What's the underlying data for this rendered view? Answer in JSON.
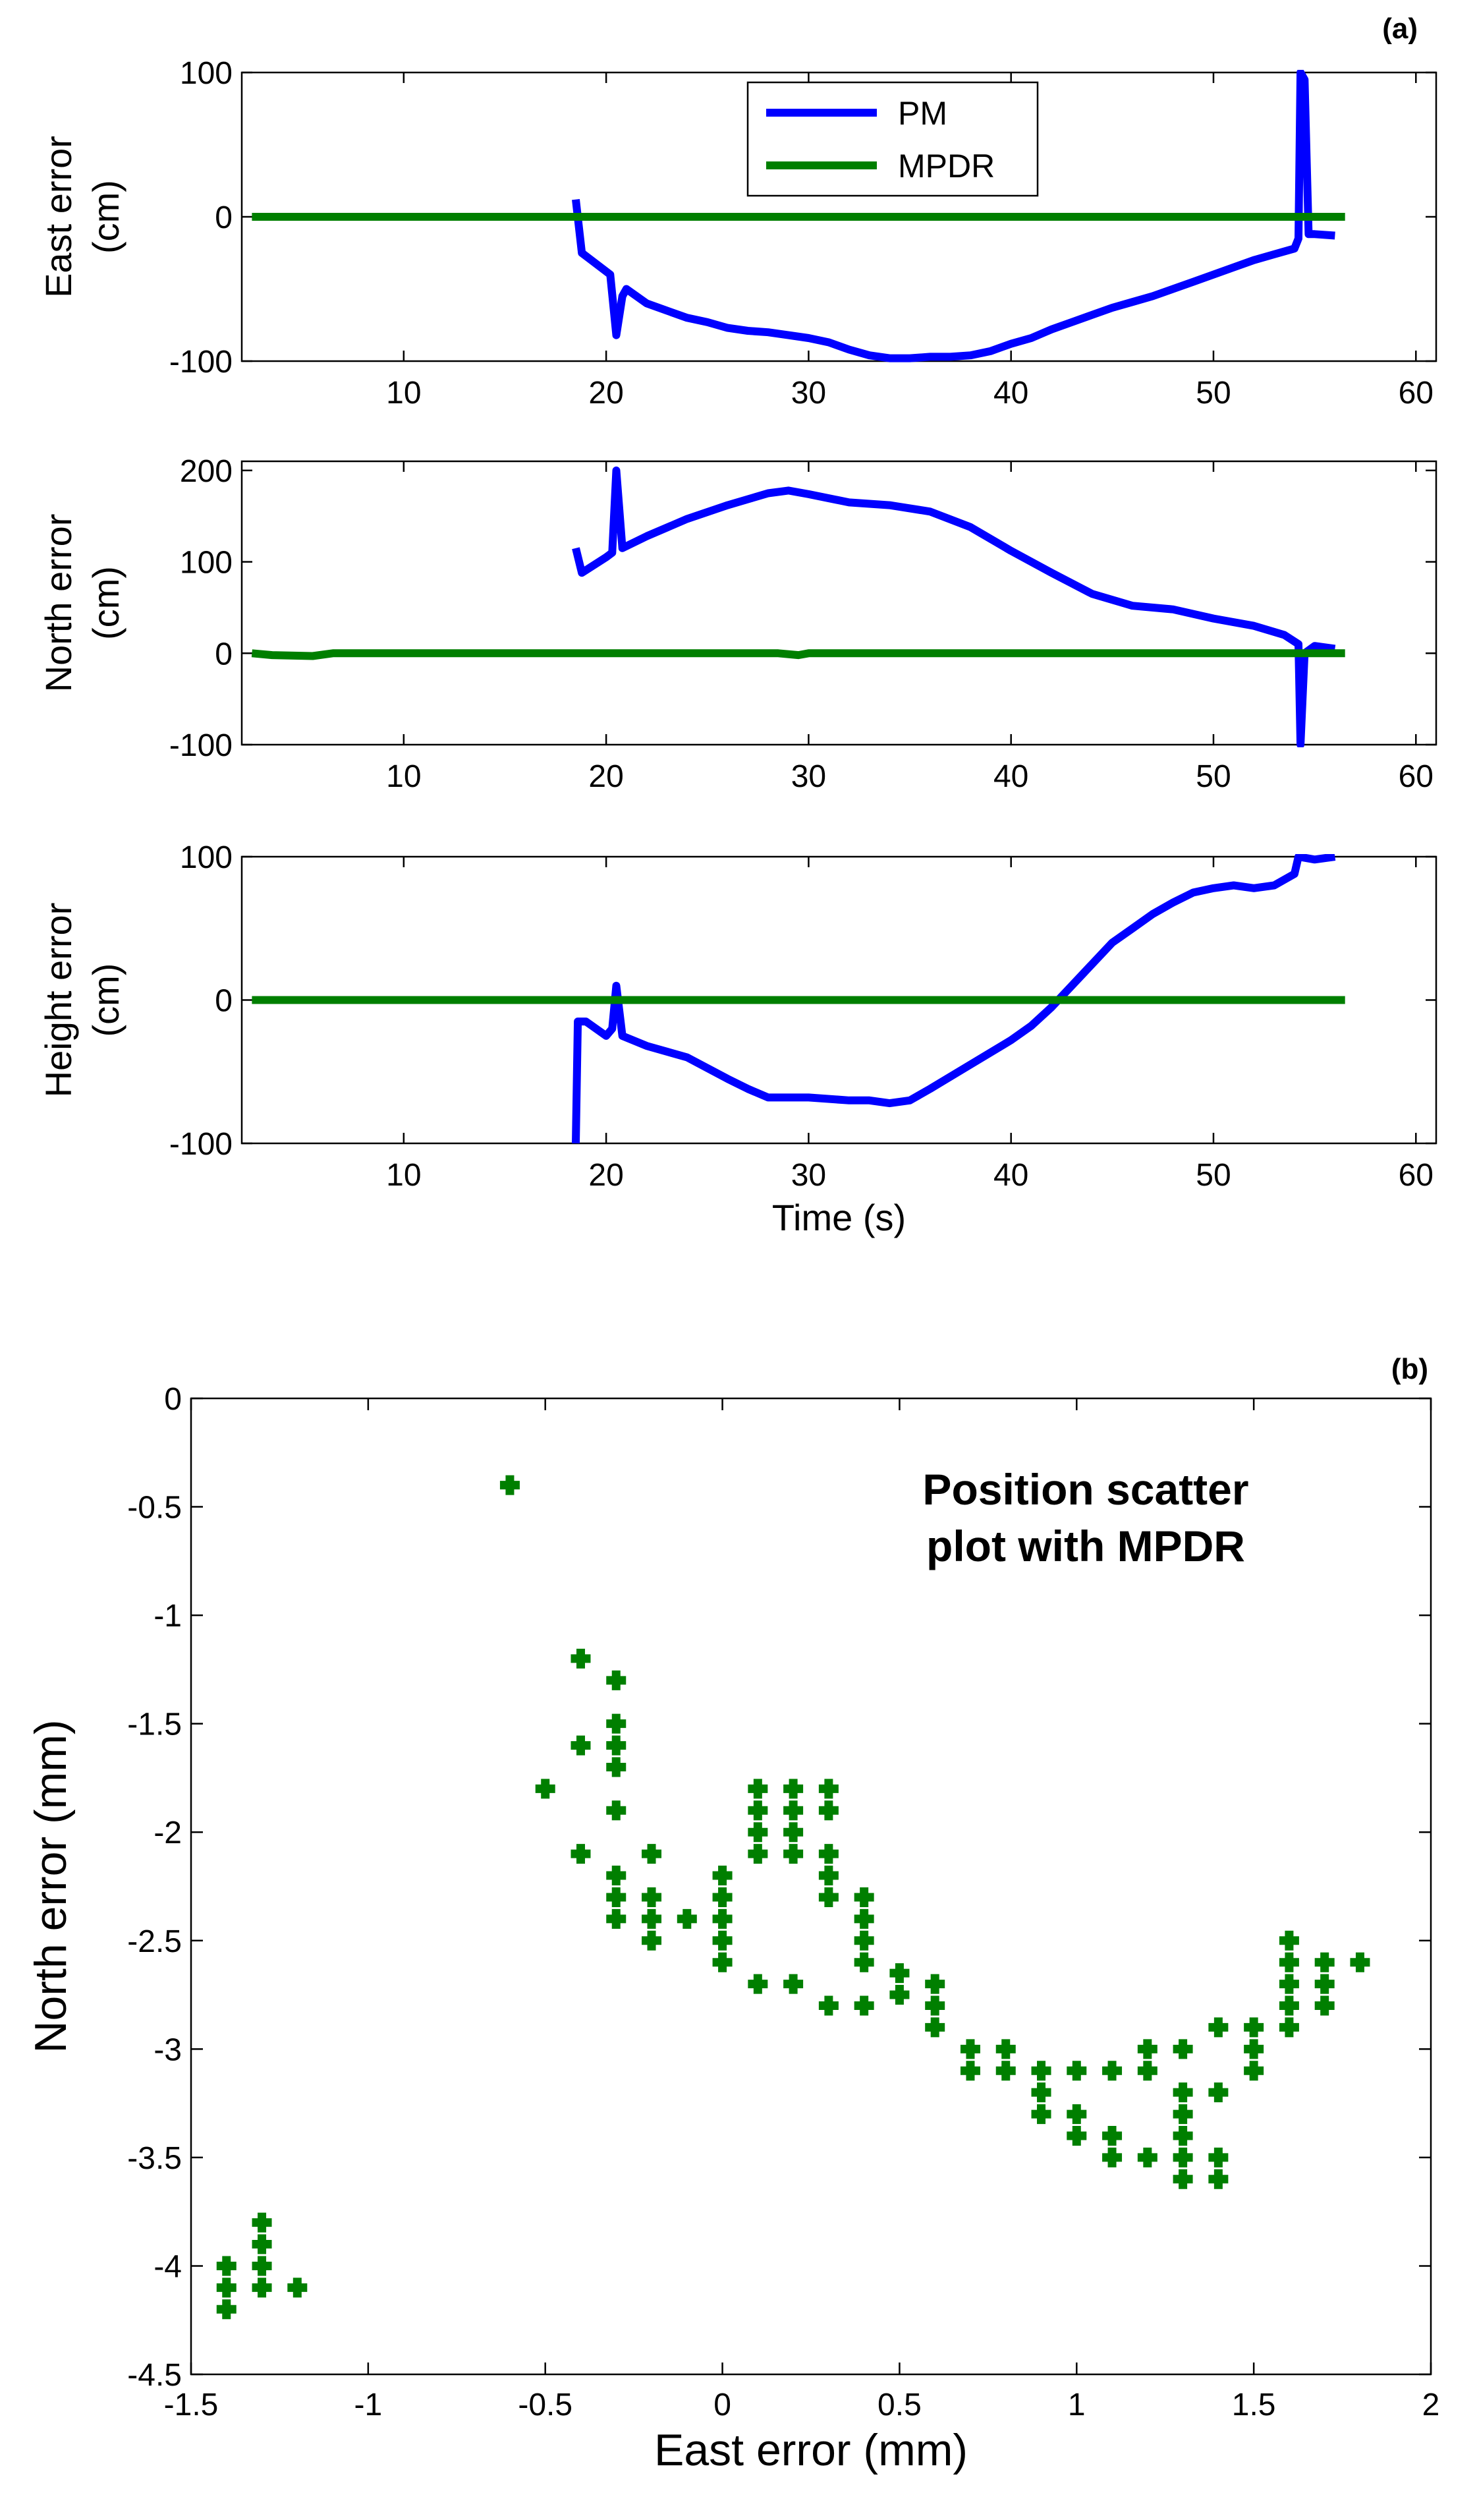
{
  "figure": {
    "panel_a_tag": "(a)",
    "panel_b_tag": "(b)",
    "colors": {
      "pm": "#0000ff",
      "mpdr": "#007f00",
      "axis": "#000000"
    }
  },
  "chart_data": [
    {
      "type": "line",
      "panel": "a-east",
      "title": "",
      "xlabel": "",
      "ylabel_lines": [
        "East error",
        "(cm)"
      ],
      "xlim": [
        2,
        61
      ],
      "ylim": [
        -100,
        100
      ],
      "xticks": [
        10,
        20,
        30,
        40,
        50,
        60
      ],
      "yticks": [
        -100,
        0,
        100
      ],
      "legend": {
        "position": "top-center",
        "entries": [
          "PM",
          "MPDR"
        ]
      },
      "series": [
        {
          "name": "PM",
          "color": "#0000ff",
          "x": [
            18.5,
            18.8,
            20.2,
            20.5,
            20.8,
            21.0,
            22.0,
            23.0,
            24.0,
            25.0,
            26.0,
            27.0,
            28.0,
            29.0,
            30.0,
            31.0,
            32.0,
            33.0,
            34.0,
            35.0,
            36.0,
            37.0,
            38.0,
            39.0,
            40.0,
            41.0,
            42.0,
            43.0,
            44.0,
            45.0,
            46.0,
            47.0,
            48.0,
            49.0,
            50.0,
            51.0,
            52.0,
            53.0,
            54.0,
            54.2,
            54.3,
            54.5,
            54.7,
            55.0,
            56.0
          ],
          "y": [
            12,
            -25,
            -40,
            -82,
            -55,
            -50,
            -60,
            -65,
            -70,
            -73,
            -77,
            -79,
            -80,
            -82,
            -84,
            -87,
            -92,
            -96,
            -98,
            -98,
            -97,
            -97,
            -96,
            -93,
            -88,
            -84,
            -78,
            -73,
            -68,
            -63,
            -59,
            -55,
            -50,
            -45,
            -40,
            -35,
            -30,
            -26,
            -22,
            -15,
            100,
            95,
            -12,
            -12,
            -13
          ]
        },
        {
          "name": "MPDR",
          "color": "#007f00",
          "x": [
            2.5,
            56.5
          ],
          "y": [
            0,
            0
          ]
        }
      ]
    },
    {
      "type": "line",
      "panel": "a-north",
      "title": "",
      "xlabel": "",
      "ylabel_lines": [
        "North error",
        "(cm)"
      ],
      "xlim": [
        2,
        61
      ],
      "ylim": [
        -100,
        210
      ],
      "xticks": [
        10,
        20,
        30,
        40,
        50,
        60
      ],
      "yticks": [
        -100,
        0,
        100,
        200
      ],
      "series": [
        {
          "name": "PM",
          "color": "#0000ff",
          "x": [
            18.5,
            18.8,
            20.0,
            20.3,
            20.5,
            20.8,
            22.0,
            24.0,
            26.0,
            28.0,
            29.0,
            30.0,
            32.0,
            34.0,
            36.0,
            38.0,
            40.0,
            42.0,
            44.0,
            46.0,
            48.0,
            50.0,
            52.0,
            53.5,
            54.2,
            54.3,
            54.5,
            55.0,
            56.0
          ],
          "y": [
            115,
            88,
            105,
            110,
            200,
            115,
            128,
            147,
            162,
            175,
            178,
            174,
            165,
            162,
            155,
            138,
            112,
            88,
            65,
            52,
            48,
            38,
            30,
            20,
            10,
            -100,
            0,
            8,
            5
          ]
        },
        {
          "name": "MPDR",
          "color": "#007f00",
          "x": [
            2.5,
            3.5,
            5.5,
            6.5,
            28.5,
            29.5,
            30.0,
            56.5
          ],
          "y": [
            0,
            -2,
            -3,
            0,
            0,
            -2,
            0,
            0
          ]
        }
      ]
    },
    {
      "type": "line",
      "panel": "a-height",
      "title": "",
      "xlabel": "Time (s)",
      "ylabel_lines": [
        "Height error",
        "(cm)"
      ],
      "xlim": [
        2,
        61
      ],
      "ylim": [
        -100,
        100
      ],
      "xticks": [
        10,
        20,
        30,
        40,
        50,
        60
      ],
      "yticks": [
        -100,
        0,
        100
      ],
      "series": [
        {
          "name": "PM",
          "color": "#0000ff",
          "x": [
            18.5,
            18.6,
            19.0,
            20.0,
            20.3,
            20.5,
            20.8,
            22.0,
            24.0,
            26.0,
            27.0,
            28.0,
            30.0,
            32.0,
            33.0,
            34.0,
            35.0,
            36.0,
            38.0,
            40.0,
            41.0,
            42.0,
            43.0,
            44.0,
            45.0,
            46.0,
            47.0,
            48.0,
            49.0,
            50.0,
            51.0,
            52.0,
            53.0,
            54.0,
            54.2,
            55.0,
            56.0
          ],
          "y": [
            -100,
            -15,
            -15,
            -25,
            -20,
            10,
            -25,
            -32,
            -40,
            -55,
            -62,
            -68,
            -68,
            -70,
            -70,
            -72,
            -70,
            -62,
            -45,
            -28,
            -18,
            -5,
            10,
            25,
            40,
            50,
            60,
            68,
            75,
            78,
            80,
            78,
            80,
            88,
            100,
            98,
            100
          ]
        },
        {
          "name": "MPDR",
          "color": "#007f00",
          "x": [
            2.5,
            56.5
          ],
          "y": [
            0,
            0
          ]
        }
      ]
    },
    {
      "type": "scatter",
      "panel": "b",
      "title": "",
      "annotation_lines": [
        "Position scatter",
        "plot with MPDR"
      ],
      "xlabel": "East error (mm)",
      "ylabel": "North error (mm)",
      "xlim": [
        -1.5,
        2
      ],
      "ylim": [
        -4.5,
        0
      ],
      "xticks": [
        -1.5,
        -1,
        -0.5,
        0,
        0.5,
        1,
        1.5,
        2
      ],
      "xtick_labels": [
        "-1.5",
        "-1",
        "-0.5",
        "0",
        "0.5",
        "1",
        "1.5",
        "2"
      ],
      "yticks": [
        0,
        -0.5,
        -1,
        -1.5,
        -2,
        -2.5,
        -3,
        -3.5,
        -4,
        -4.5
      ],
      "ytick_labels": [
        "0",
        "-0.5",
        "-1",
        "-1.5",
        "-2",
        "-2.5",
        "-3",
        "-3.5",
        "-4",
        "-4.5"
      ],
      "series": [
        {
          "name": "MPDR",
          "color": "#007f00",
          "marker": "plus",
          "points": [
            [
              -1.4,
              -4.0
            ],
            [
              -1.4,
              -4.1
            ],
            [
              -1.4,
              -4.2
            ],
            [
              -1.3,
              -3.8
            ],
            [
              -1.3,
              -3.9
            ],
            [
              -1.3,
              -4.0
            ],
            [
              -1.3,
              -4.1
            ],
            [
              -1.2,
              -4.1
            ],
            [
              -0.6,
              -0.4
            ],
            [
              -0.5,
              -1.8
            ],
            [
              -0.4,
              -1.2
            ],
            [
              -0.4,
              -1.6
            ],
            [
              -0.4,
              -2.1
            ],
            [
              -0.3,
              -1.3
            ],
            [
              -0.3,
              -1.5
            ],
            [
              -0.3,
              -1.6
            ],
            [
              -0.3,
              -1.7
            ],
            [
              -0.3,
              -1.9
            ],
            [
              -0.3,
              -2.2
            ],
            [
              -0.3,
              -2.3
            ],
            [
              -0.3,
              -2.4
            ],
            [
              -0.2,
              -2.1
            ],
            [
              -0.2,
              -2.3
            ],
            [
              -0.2,
              -2.4
            ],
            [
              -0.2,
              -2.5
            ],
            [
              -0.1,
              -2.4
            ],
            [
              0.0,
              -2.2
            ],
            [
              0.0,
              -2.3
            ],
            [
              0.0,
              -2.4
            ],
            [
              0.0,
              -2.5
            ],
            [
              0.0,
              -2.6
            ],
            [
              0.1,
              -1.8
            ],
            [
              0.1,
              -1.9
            ],
            [
              0.1,
              -2.0
            ],
            [
              0.1,
              -2.1
            ],
            [
              0.1,
              -2.7
            ],
            [
              0.2,
              -1.8
            ],
            [
              0.2,
              -1.9
            ],
            [
              0.2,
              -2.0
            ],
            [
              0.2,
              -2.1
            ],
            [
              0.2,
              -2.7
            ],
            [
              0.3,
              -1.8
            ],
            [
              0.3,
              -1.9
            ],
            [
              0.3,
              -2.1
            ],
            [
              0.3,
              -2.2
            ],
            [
              0.3,
              -2.3
            ],
            [
              0.3,
              -2.8
            ],
            [
              0.4,
              -2.3
            ],
            [
              0.4,
              -2.4
            ],
            [
              0.4,
              -2.5
            ],
            [
              0.4,
              -2.6
            ],
            [
              0.4,
              -2.8
            ],
            [
              0.5,
              -2.65
            ],
            [
              0.5,
              -2.75
            ],
            [
              0.6,
              -2.7
            ],
            [
              0.6,
              -2.8
            ],
            [
              0.6,
              -2.9
            ],
            [
              0.7,
              -3.0
            ],
            [
              0.7,
              -3.1
            ],
            [
              0.8,
              -3.0
            ],
            [
              0.8,
              -3.1
            ],
            [
              0.9,
              -3.1
            ],
            [
              0.9,
              -3.2
            ],
            [
              0.9,
              -3.3
            ],
            [
              1.0,
              -3.1
            ],
            [
              1.0,
              -3.3
            ],
            [
              1.0,
              -3.4
            ],
            [
              1.1,
              -3.1
            ],
            [
              1.1,
              -3.4
            ],
            [
              1.1,
              -3.5
            ],
            [
              1.2,
              -3.0
            ],
            [
              1.2,
              -3.1
            ],
            [
              1.2,
              -3.5
            ],
            [
              1.3,
              -3.0
            ],
            [
              1.3,
              -3.2
            ],
            [
              1.3,
              -3.3
            ],
            [
              1.3,
              -3.4
            ],
            [
              1.3,
              -3.5
            ],
            [
              1.3,
              -3.6
            ],
            [
              1.4,
              -2.9
            ],
            [
              1.4,
              -3.2
            ],
            [
              1.4,
              -3.5
            ],
            [
              1.4,
              -3.6
            ],
            [
              1.5,
              -2.9
            ],
            [
              1.5,
              -3.0
            ],
            [
              1.5,
              -3.1
            ],
            [
              1.6,
              -2.5
            ],
            [
              1.6,
              -2.6
            ],
            [
              1.6,
              -2.7
            ],
            [
              1.6,
              -2.8
            ],
            [
              1.6,
              -2.9
            ],
            [
              1.7,
              -2.6
            ],
            [
              1.7,
              -2.7
            ],
            [
              1.7,
              -2.8
            ],
            [
              1.8,
              -2.6
            ]
          ]
        }
      ]
    }
  ]
}
